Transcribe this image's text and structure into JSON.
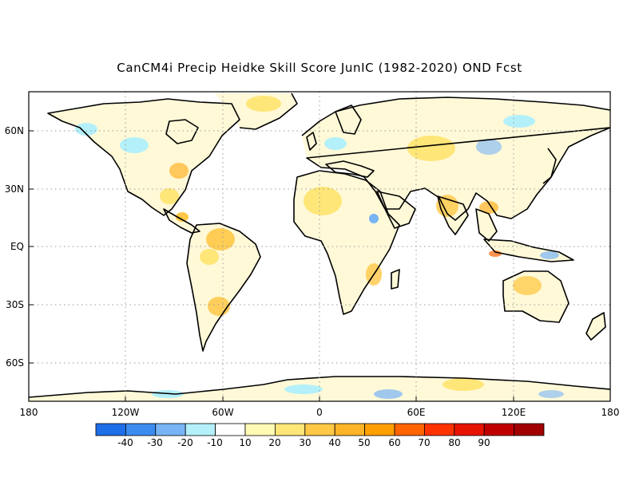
{
  "title": "CanCM4i Precip Heidke Skill Score JunIC (1982-2020) OND Fcst",
  "lat_labels": [
    "60N",
    "30N",
    "EQ",
    "30S",
    "60S"
  ],
  "lon_labels": [
    "180",
    "120W",
    "60W",
    "0",
    "60E",
    "120E",
    "180"
  ],
  "colorbar": {
    "labels": [
      "-40",
      "-30",
      "-20",
      "-10",
      "10",
      "20",
      "30",
      "40",
      "50",
      "60",
      "70",
      "80",
      "90"
    ],
    "colors": [
      "#1e6ee8",
      "#3c8cf0",
      "#78b4f6",
      "#b4f0fa",
      "#ffffff",
      "#fffab4",
      "#ffe678",
      "#ffc846",
      "#ffb428",
      "#ffa000",
      "#ff6400",
      "#ff3200",
      "#e61400",
      "#c00000",
      "#a00000"
    ]
  },
  "colors": {
    "land_outline": "#000000",
    "grid": "#9a9a9a",
    "positive_skill": "#ffe678",
    "negative_skill": "#b4f0fa"
  }
}
